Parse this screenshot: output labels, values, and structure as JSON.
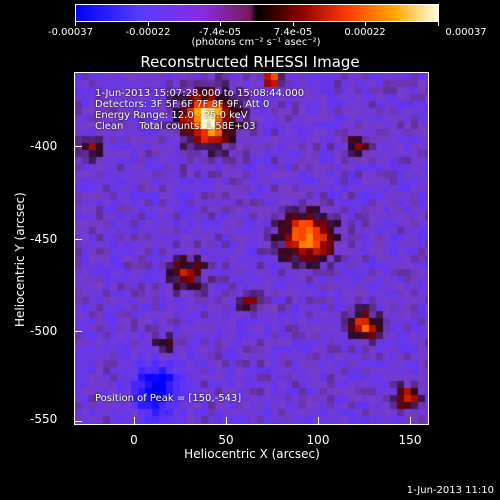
{
  "colorbar": {
    "tick_labels": [
      "-0.00037",
      "-0.00022",
      "-7.4e-05",
      "7.4e-05",
      "0.00022",
      "0.00037"
    ],
    "unit_label": "(photons cm⁻² s⁻¹ asec⁻²)"
  },
  "title": "Reconstructed RHESSI Image",
  "annotations": [
    "1-Jun-2013 15:07:28.000 to 15:08:44.000",
    "Detectors: 3F 5F 6F 7F 8F 9F, Att 0",
    "Energy Range: 12.0 - 25.0 keV",
    "Clean     Total counts: 1.58E+03"
  ],
  "peak_label": "Position of Peak = [150,-543]",
  "axes": {
    "xlabel": "Heliocentric X (arcsec)",
    "ylabel": "Heliocentric Y (arcsec)",
    "xticks": [
      "0",
      "50",
      "100",
      "150"
    ],
    "yticks": [
      "-400",
      "-450",
      "-500",
      "-550"
    ]
  },
  "footer": "1-Jun-2013 11:10",
  "colors": {
    "low": "#0000ff",
    "mid": "#000000",
    "high": "#ffffe0"
  }
}
